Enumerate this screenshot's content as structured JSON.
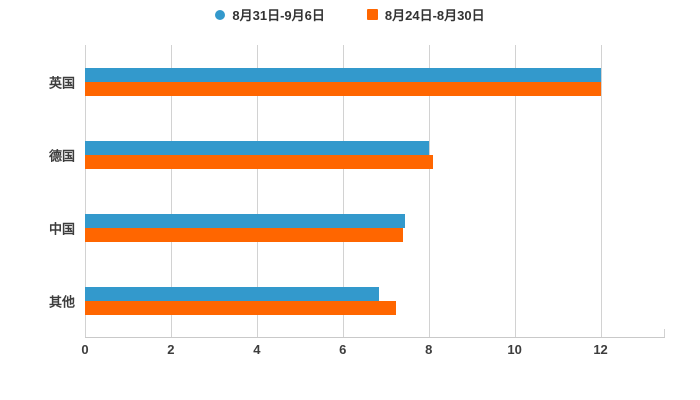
{
  "legend": {
    "series1_label": "8月31日-9月6日",
    "series2_label": "8月24日-8月30日"
  },
  "colors": {
    "series1": "#3399cc",
    "series2": "#ff6600",
    "gridline": "#d2d2d2",
    "axis_line": "#c9c9c9",
    "tick_text": "#3d3d3d",
    "legend_text": "#333333",
    "background": "#ffffff"
  },
  "chart_data": {
    "type": "bar",
    "orientation": "horizontal",
    "title": "",
    "xlabel": "",
    "ylabel": "",
    "categories": [
      "英国",
      "德国",
      "中国",
      "其他"
    ],
    "series": [
      {
        "name": "8月31日-9月6日",
        "color": "#3399cc",
        "marker": "circle",
        "values": [
          12,
          8,
          7.45,
          6.85
        ]
      },
      {
        "name": "8月24日-8月30日",
        "color": "#ff6600",
        "marker": "square",
        "values": [
          12,
          8.1,
          7.4,
          7.25
        ]
      }
    ],
    "xlim": [
      0,
      13.5
    ],
    "xticks": [
      0,
      2,
      4,
      6,
      8,
      10,
      12
    ],
    "grid": true,
    "legend_position": "top"
  }
}
